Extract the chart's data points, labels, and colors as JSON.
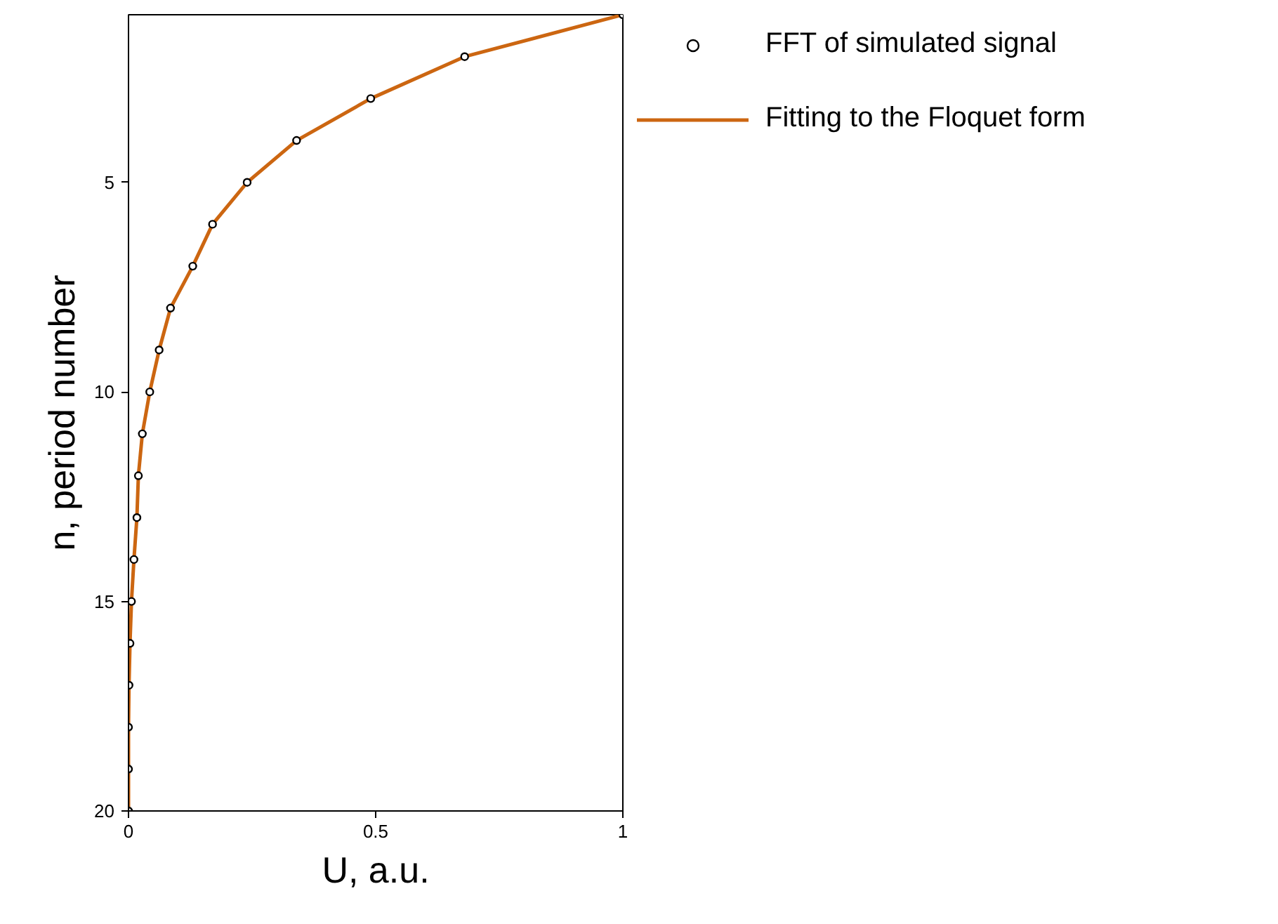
{
  "chart_data": {
    "type": "line",
    "xlabel": "U, a.u.",
    "ylabel": "n, period number",
    "xlim": [
      0,
      1
    ],
    "xticks": [
      0,
      0.5,
      1
    ],
    "ylim": [
      20,
      1
    ],
    "yticks": [
      5,
      10,
      15,
      20
    ],
    "grid": false,
    "legend": "right",
    "series": [
      {
        "name": "FFT of simulated signal",
        "type": "scatter",
        "marker": "circle",
        "color": "#000000",
        "x": [
          1,
          0.68,
          0.49,
          0.34,
          0.24,
          0.17,
          0.13,
          0.085,
          0.062,
          0.043,
          0.028,
          0.02,
          0.017,
          0.011,
          0.006,
          0.003,
          0.001,
          0,
          0,
          0
        ],
        "values": [
          1,
          2,
          3,
          4,
          5,
          6,
          7,
          8,
          9,
          10,
          11,
          12,
          13,
          14,
          15,
          16,
          17,
          18,
          19,
          20
        ]
      },
      {
        "name": "Fitting to the Floquet form",
        "marker": "none",
        "line_style": "solid",
        "color": "#cc6611",
        "x": [
          1,
          0.68,
          0.49,
          0.34,
          0.24,
          0.17,
          0.13,
          0.085,
          0.062,
          0.043,
          0.028,
          0.02,
          0.017,
          0.011,
          0.006,
          0.003,
          0.001,
          0,
          0,
          0
        ],
        "values": [
          1,
          2,
          3,
          4,
          5,
          6,
          7,
          8,
          9,
          10,
          11,
          12,
          13,
          14,
          15,
          16,
          17,
          18,
          19,
          20
        ]
      }
    ]
  }
}
